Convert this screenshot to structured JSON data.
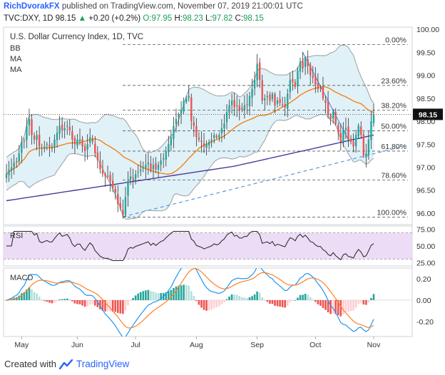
{
  "header": {
    "author": "RichDvorakFX",
    "published_text": "published on TradingView.com, November 07, 2019 21:00:01 UTC",
    "symbol_text": "TVC:DXY, 1D",
    "last": "98.15",
    "change_arrow": "▲",
    "change": "+0.20 (+0.2%)",
    "o_label": "O:",
    "o_value": "97.95",
    "h_label": "H:",
    "h_value": "98.23",
    "l_label": "L:",
    "l_value": "97.82",
    "c_label": "C:",
    "c_value": "98.15"
  },
  "footer": {
    "created_with": "Created with",
    "brand": "TradingView"
  },
  "colors": {
    "up": "#26a69a",
    "down": "#ef5350",
    "ma50": "#f57c00",
    "ma200": "#4a3a9a",
    "bb": "#9e9e9e",
    "bbfill": "#d6ecf5",
    "rsi": "#222222",
    "rsifill": "#ecdcf6",
    "macd": "#2196f3",
    "signal": "#ff7f27",
    "fib": "#555555",
    "trend": "#4a90d9"
  },
  "chart_data": {
    "type": "candlestick",
    "title": "U.S. Dollar Currency Index, 1D, TVC",
    "legend": [
      "BB",
      "MA",
      "MA"
    ],
    "ylim": [
      95.75,
      100.05
    ],
    "yticks": [
      100.0,
      99.5,
      99.0,
      98.5,
      98.0,
      97.5,
      97.0,
      96.5,
      96.0
    ],
    "ytick_labels": [
      "100.00",
      "99.50",
      "99.00",
      "98.50",
      "98.00",
      "97.50",
      "97.00",
      "96.50",
      "96.00"
    ],
    "last_price": 98.15,
    "last_price_label": "98.15",
    "x_labels": [
      "May",
      "Jun",
      "Jul",
      "Aug",
      "Sep",
      "Oct",
      "Nov"
    ],
    "x_label_bars": [
      6,
      28,
      51,
      75,
      99,
      122,
      145
    ],
    "close": [
      96.85,
      96.95,
      97.0,
      97.1,
      97.1,
      97.3,
      97.55,
      97.55,
      97.9,
      98.05,
      97.7,
      97.6,
      97.7,
      97.45,
      97.4,
      97.45,
      97.5,
      97.45,
      97.45,
      97.6,
      97.75,
      97.9,
      97.8,
      97.85,
      97.9,
      97.8,
      97.6,
      97.5,
      97.6,
      97.6,
      97.45,
      97.35,
      97.5,
      97.65,
      97.55,
      97.3,
      97.15,
      96.95,
      96.85,
      96.8,
      96.8,
      96.7,
      96.55,
      96.45,
      96.2,
      96.1,
      95.95,
      96.35,
      96.7,
      96.8,
      96.75,
      96.85,
      96.9,
      96.95,
      97.0,
      97.05,
      97.1,
      96.95,
      97.05,
      96.95,
      97.05,
      97.15,
      97.2,
      97.35,
      97.5,
      97.65,
      97.9,
      98.05,
      98.15,
      98.25,
      98.45,
      98.5,
      98.55,
      98.0,
      97.9,
      97.65,
      97.6,
      97.55,
      97.45,
      97.5,
      97.55,
      97.6,
      97.7,
      97.65,
      97.7,
      97.85,
      97.95,
      98.2,
      98.35,
      98.45,
      98.3,
      98.35,
      98.25,
      98.25,
      98.35,
      98.35,
      98.55,
      98.7,
      98.9,
      99.25,
      98.9,
      98.45,
      98.5,
      98.55,
      98.45,
      98.6,
      98.35,
      98.45,
      98.4,
      98.35,
      98.3,
      98.6,
      98.9,
      98.85,
      98.75,
      99.1,
      99.3,
      99.15,
      99.35,
      99.2,
      99.0,
      98.95,
      98.8,
      98.7,
      98.7,
      98.5,
      98.4,
      98.15,
      98.05,
      98.2,
      97.95,
      97.75,
      97.55,
      97.8,
      97.85,
      97.6,
      97.55,
      97.45,
      97.7,
      97.9,
      97.7,
      97.25,
      97.3,
      97.6,
      98.0,
      98.15
    ]
  },
  "fib_levels": [
    {
      "label": "0.00%",
      "value": 99.67
    },
    {
      "label": "23.60%",
      "value": 98.78
    },
    {
      "label": "38.20%",
      "value": 98.24
    },
    {
      "label": "50.00%",
      "value": 97.79
    },
    {
      "label": "61.80%",
      "value": 97.35
    },
    {
      "label": "78.60%",
      "value": 96.72
    },
    {
      "label": "100.00%",
      "value": 95.91
    }
  ],
  "rsi_panel": {
    "label": "RSI",
    "yticks": [
      "75.00",
      "50.00",
      "25.00"
    ],
    "ylim": [
      20,
      80
    ],
    "upper": 70,
    "lower": 30
  },
  "macd_panel": {
    "label": "MACD",
    "yticks": [
      "0.20",
      "0.00",
      "-0.20"
    ],
    "ylim": [
      -0.34,
      0.3
    ]
  }
}
